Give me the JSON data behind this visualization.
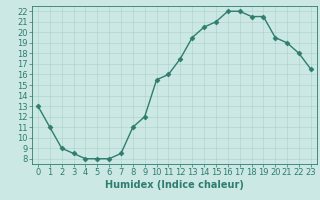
{
  "x": [
    0,
    1,
    2,
    3,
    4,
    5,
    6,
    7,
    8,
    9,
    10,
    11,
    12,
    13,
    14,
    15,
    16,
    17,
    18,
    19,
    20,
    21,
    22,
    23
  ],
  "y": [
    13,
    11,
    9,
    8.5,
    8,
    8,
    8,
    8.5,
    11,
    12,
    15.5,
    16,
    17.5,
    19.5,
    20.5,
    21,
    22,
    22,
    21.5,
    21.5,
    19.5,
    19,
    18,
    16.5
  ],
  "line_color": "#2e7d6e",
  "marker": "D",
  "marker_size": 2.5,
  "bg_color": "#cce8e4",
  "grid_color": "#aacfca",
  "xlabel": "Humidex (Indice chaleur)",
  "xlim": [
    -0.5,
    23.5
  ],
  "ylim": [
    7.5,
    22.5
  ],
  "yticks": [
    8,
    9,
    10,
    11,
    12,
    13,
    14,
    15,
    16,
    17,
    18,
    19,
    20,
    21,
    22
  ],
  "xticks": [
    0,
    1,
    2,
    3,
    4,
    5,
    6,
    7,
    8,
    9,
    10,
    11,
    12,
    13,
    14,
    15,
    16,
    17,
    18,
    19,
    20,
    21,
    22,
    23
  ],
  "label_fontsize": 7,
  "tick_fontsize": 6
}
